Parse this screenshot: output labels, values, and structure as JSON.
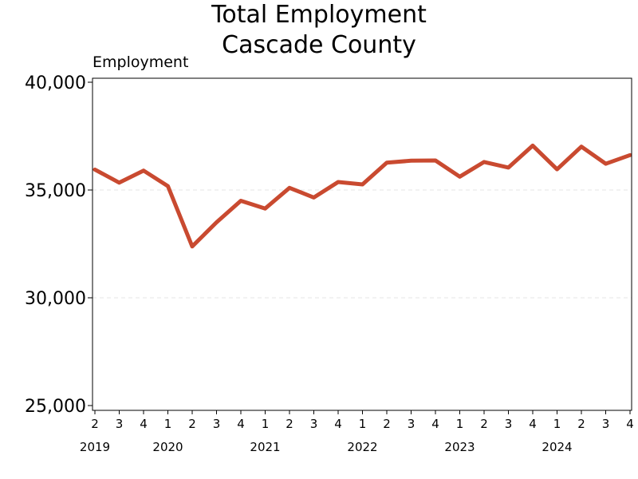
{
  "chart_data": {
    "type": "line",
    "title": [
      "Total Employment",
      "Cascade County"
    ],
    "ylabel": "Employment",
    "ylim": [
      25000,
      40000
    ],
    "yticks": [
      25000,
      30000,
      35000,
      40000
    ],
    "ytick_labels": [
      "25,000",
      "30,000",
      "35,000",
      "40,000"
    ],
    "grid": "horizontal-dashed",
    "x_quarter_labels": [
      "2",
      "3",
      "4",
      "1",
      "2",
      "3",
      "4",
      "1",
      "2",
      "3",
      "4",
      "1",
      "2",
      "3",
      "4",
      "1",
      "2",
      "3",
      "4",
      "1",
      "2",
      "3",
      "4"
    ],
    "x_year_labels": [
      {
        "label": "2019",
        "index": 0
      },
      {
        "label": "2020",
        "index": 3
      },
      {
        "label": "2021",
        "index": 7
      },
      {
        "label": "2022",
        "index": 11
      },
      {
        "label": "2023",
        "index": 15
      },
      {
        "label": "2024",
        "index": 19
      }
    ],
    "series": [
      {
        "color": "#c94a30",
        "x": [
          "2019 Q2",
          "2019 Q3",
          "2019 Q4",
          "2020 Q1",
          "2020 Q2",
          "2020 Q3",
          "2020 Q4",
          "2021 Q1",
          "2021 Q2",
          "2021 Q3",
          "2021 Q4",
          "2022 Q1",
          "2022 Q2",
          "2022 Q3",
          "2022 Q4",
          "2023 Q1",
          "2023 Q2",
          "2023 Q3",
          "2023 Q4",
          "2024 Q1",
          "2024 Q2",
          "2024 Q3",
          "2024 Q4"
        ],
        "values": [
          35950,
          35340,
          35900,
          35180,
          32380,
          33500,
          34500,
          34140,
          35100,
          34650,
          35370,
          35260,
          36270,
          36360,
          36370,
          35620,
          36300,
          36040,
          37060,
          35960,
          37010,
          36220,
          36620
        ]
      }
    ]
  }
}
